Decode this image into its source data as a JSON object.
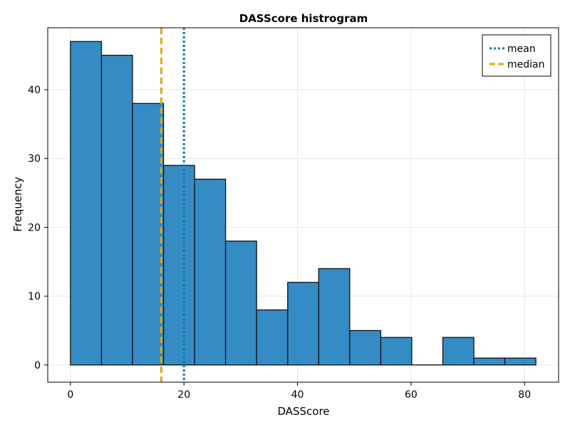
{
  "chart_data": {
    "type": "bar",
    "title": "DASScore histrogram",
    "xlabel": "DASScore",
    "ylabel": "Frequency",
    "xlim": [
      -4,
      86
    ],
    "ylim": [
      -2.5,
      49
    ],
    "xticks": [
      0,
      20,
      40,
      60,
      80
    ],
    "yticks": [
      0,
      10,
      20,
      30,
      40
    ],
    "grid": true,
    "bins": [
      {
        "start": 0.0,
        "end": 5.47,
        "count": 47
      },
      {
        "start": 5.47,
        "end": 10.93,
        "count": 45
      },
      {
        "start": 10.93,
        "end": 16.4,
        "count": 38
      },
      {
        "start": 16.4,
        "end": 21.87,
        "count": 29
      },
      {
        "start": 21.87,
        "end": 27.33,
        "count": 27
      },
      {
        "start": 27.33,
        "end": 32.8,
        "count": 18
      },
      {
        "start": 32.8,
        "end": 38.27,
        "count": 8
      },
      {
        "start": 38.27,
        "end": 43.73,
        "count": 12
      },
      {
        "start": 43.73,
        "end": 49.2,
        "count": 14
      },
      {
        "start": 49.2,
        "end": 54.67,
        "count": 5
      },
      {
        "start": 54.67,
        "end": 60.13,
        "count": 4
      },
      {
        "start": 60.13,
        "end": 65.6,
        "count": 0
      },
      {
        "start": 65.6,
        "end": 71.07,
        "count": 4
      },
      {
        "start": 71.07,
        "end": 76.53,
        "count": 1
      },
      {
        "start": 76.53,
        "end": 82.0,
        "count": 1
      }
    ],
    "bar_color": "#1f7fbf",
    "mean": {
      "name": "mean",
      "value": 20.0,
      "color": "#0e7ab0",
      "style": "dotted"
    },
    "median": {
      "name": "median",
      "value": 16.0,
      "color": "#e3a60b",
      "style": "dashed"
    },
    "legend_position": "top-right"
  }
}
